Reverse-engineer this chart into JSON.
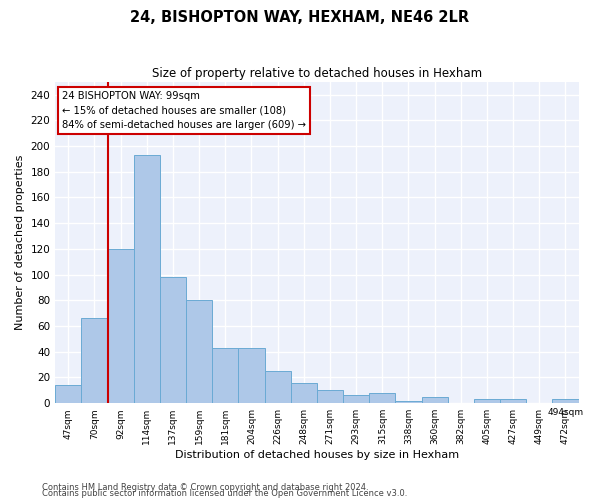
{
  "title": "24, BISHOPTON WAY, HEXHAM, NE46 2LR",
  "subtitle": "Size of property relative to detached houses in Hexham",
  "xlabel": "Distribution of detached houses by size in Hexham",
  "ylabel": "Number of detached properties",
  "bar_values": [
    14,
    66,
    120,
    193,
    98,
    80,
    43,
    43,
    25,
    16,
    10,
    6,
    8,
    2,
    5,
    0,
    3,
    3,
    0,
    3
  ],
  "bin_labels": [
    "47sqm",
    "70sqm",
    "92sqm",
    "114sqm",
    "137sqm",
    "159sqm",
    "181sqm",
    "204sqm",
    "226sqm",
    "248sqm",
    "271sqm",
    "293sqm",
    "315sqm",
    "338sqm",
    "360sqm",
    "382sqm",
    "405sqm",
    "427sqm",
    "449sqm",
    "472sqm",
    "494sqm"
  ],
  "bar_color": "#aec8e8",
  "bar_edge_color": "#6aaad4",
  "vline_x": 2.0,
  "vline_color": "#cc0000",
  "annotation_text": "24 BISHOPTON WAY: 99sqm\n← 15% of detached houses are smaller (108)\n84% of semi-detached houses are larger (609) →",
  "annotation_box_edgecolor": "#cc0000",
  "ylim": [
    0,
    250
  ],
  "yticks": [
    0,
    20,
    40,
    60,
    80,
    100,
    120,
    140,
    160,
    180,
    200,
    220,
    240
  ],
  "plot_bg_color": "#edf1fb",
  "grid_color": "#ffffff",
  "footer_line1": "Contains HM Land Registry data © Crown copyright and database right 2024.",
  "footer_line2": "Contains public sector information licensed under the Open Government Licence v3.0."
}
